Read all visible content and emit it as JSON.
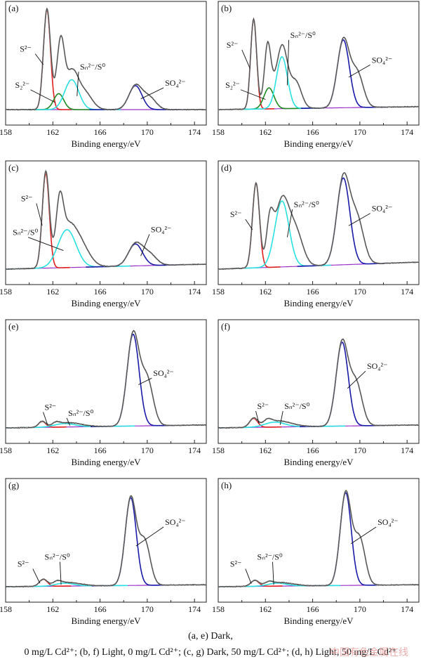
{
  "caption": {
    "line1": "(a, e) Dark,",
    "line2": "0 mg/L Cd²⁺; (b, f) Light, 0 mg/L Cd²⁺; (c, g) Dark, 50 mg/L Cd²⁺; (d, h) Light, 50 mg/L Cd²⁺",
    "watermark": "中国有色金属在线"
  },
  "colors": {
    "raw": "#1a1a1a",
    "envelope": "#8c8c8c",
    "s2": "#e02020",
    "s22": "#1f8a1f",
    "sn": "#29e0e0",
    "so4": "#1a1aa8",
    "background": "#9b30c8"
  },
  "chart_data": [
    {
      "panel": "(a)",
      "type": "line",
      "xlabel": "Binding energy/eV",
      "xlim": [
        158,
        175
      ],
      "xticks": [
        158,
        162,
        166,
        170,
        174
      ],
      "series": [
        {
          "name": "S²⁻",
          "key": "s2",
          "center": 161.5,
          "height": 1.0,
          "fwhm": 0.7
        },
        {
          "name": "S₂²⁻",
          "key": "s22",
          "center": 162.5,
          "height": 0.16,
          "fwhm": 1.0
        },
        {
          "name": "Sₙ²⁻/S⁰",
          "key": "sn",
          "center": 163.6,
          "height": 0.3,
          "fwhm": 1.4
        },
        {
          "name": "SO₄²⁻",
          "key": "so4",
          "center": 169.0,
          "height": 0.24,
          "fwhm": 1.3
        }
      ],
      "bg_start": 0.0,
      "bg_end": 0.0,
      "labels": [
        {
          "text": "S²⁻",
          "x": 159.2,
          "y": 0.58
        },
        {
          "text": "S₂²⁻",
          "x": 158.8,
          "y": 0.22
        },
        {
          "text": "Sₙ²⁻/S⁰",
          "x": 164.3,
          "y": 0.4
        },
        {
          "text": "SO₄²⁻",
          "x": 171.5,
          "y": 0.24
        }
      ]
    },
    {
      "panel": "(b)",
      "type": "line",
      "xlabel": "Binding energy/eV",
      "xlim": [
        158,
        175
      ],
      "xticks": [
        158,
        162,
        166,
        170,
        174
      ],
      "series": [
        {
          "name": "S²⁻",
          "key": "s2",
          "center": 161.0,
          "height": 0.9,
          "fwhm": 0.6
        },
        {
          "name": "S₂²⁻",
          "key": "s22",
          "center": 162.3,
          "height": 0.21,
          "fwhm": 1.0
        },
        {
          "name": "Sₙ²⁻/S⁰",
          "key": "sn",
          "center": 163.4,
          "height": 0.52,
          "fwhm": 1.1
        },
        {
          "name": "SO₄²⁻",
          "key": "so4",
          "center": 168.6,
          "height": 0.68,
          "fwhm": 1.2
        }
      ],
      "bg_start": 0.0,
      "bg_end": 0.03,
      "labels": [
        {
          "text": "S²⁻",
          "x": 158.7,
          "y": 0.62
        },
        {
          "text": "S₂²⁻",
          "x": 158.6,
          "y": 0.22
        },
        {
          "text": "Sₙ²⁻/S⁰",
          "x": 164.1,
          "y": 0.72
        },
        {
          "text": "SO₄²⁻",
          "x": 171.0,
          "y": 0.47
        }
      ]
    },
    {
      "panel": "(c)",
      "type": "line",
      "xlabel": "Binding energy/eV",
      "xlim": [
        158,
        175
      ],
      "xticks": [
        158,
        162,
        166,
        170,
        174
      ],
      "series": [
        {
          "name": "S²⁻",
          "key": "s2",
          "center": 161.4,
          "height": 0.95,
          "fwhm": 0.7
        },
        {
          "name": "Sₙ²⁻/S⁰",
          "key": "sn",
          "center": 163.2,
          "height": 0.38,
          "fwhm": 1.8
        },
        {
          "name": "SO₄²⁻",
          "key": "so4",
          "center": 169.0,
          "height": 0.22,
          "fwhm": 1.4
        }
      ],
      "bg_start": 0.0,
      "bg_end": 0.05,
      "labels": [
        {
          "text": "S²⁻",
          "x": 159.3,
          "y": 0.68
        },
        {
          "text": "Sₙ²⁻/S⁰",
          "x": 158.6,
          "y": 0.34
        },
        {
          "text": "SO₄²⁻",
          "x": 170.3,
          "y": 0.37
        }
      ]
    },
    {
      "panel": "(d)",
      "type": "line",
      "xlabel": "Binding energy/eV",
      "xlim": [
        158,
        175
      ],
      "xticks": [
        158,
        162,
        166,
        170,
        174
      ],
      "series": [
        {
          "name": "S²⁻",
          "key": "s2",
          "center": 161.2,
          "height": 0.85,
          "fwhm": 0.7
        },
        {
          "name": "Sₙ²⁻/S⁰",
          "key": "sn",
          "center": 163.4,
          "height": 0.66,
          "fwhm": 1.4
        },
        {
          "name": "SO₄²⁻",
          "key": "so4",
          "center": 168.6,
          "height": 0.87,
          "fwhm": 1.3
        }
      ],
      "bg_start": 0.0,
      "bg_end": 0.07,
      "labels": [
        {
          "text": "S²⁻",
          "x": 159.0,
          "y": 0.52
        },
        {
          "text": "Sₙ²⁻/S⁰",
          "x": 164.4,
          "y": 0.62
        },
        {
          "text": "SO₄²⁻",
          "x": 171.0,
          "y": 0.58
        }
      ]
    },
    {
      "panel": "(e)",
      "type": "line",
      "xlabel": "Binding energy/eV",
      "xlim": [
        158,
        175
      ],
      "xticks": [
        158,
        162,
        166,
        170,
        174
      ],
      "series": [
        {
          "name": "S²⁻",
          "key": "s2",
          "center": 161.1,
          "height": 0.06,
          "fwhm": 0.7
        },
        {
          "name": "Sₙ²⁻/S⁰",
          "key": "sn",
          "center": 163.0,
          "height": 0.035,
          "fwhm": 2.0
        },
        {
          "name": "SO₄²⁻",
          "key": "so4",
          "center": 168.8,
          "height": 0.92,
          "fwhm": 1.2
        }
      ],
      "bg_start": 0.0,
      "bg_end": 0.03,
      "labels": [
        {
          "text": "S²⁻",
          "x": 161.3,
          "y": 0.18
        },
        {
          "text": "Sₙ²⁻/S⁰",
          "x": 163.3,
          "y": 0.12
        },
        {
          "text": "SO₄²⁻",
          "x": 170.5,
          "y": 0.52
        }
      ]
    },
    {
      "panel": "(f)",
      "type": "line",
      "xlabel": "Binding energy/eV",
      "xlim": [
        158,
        175
      ],
      "xticks": [
        158,
        162,
        166,
        170,
        174
      ],
      "series": [
        {
          "name": "S²⁻",
          "key": "s2",
          "center": 161.0,
          "height": 0.09,
          "fwhm": 0.8
        },
        {
          "name": "Sₙ²⁻/S⁰",
          "key": "sn",
          "center": 162.8,
          "height": 0.05,
          "fwhm": 2.0
        },
        {
          "name": "SO₄²⁻",
          "key": "so4",
          "center": 168.5,
          "height": 0.84,
          "fwhm": 1.2
        }
      ],
      "bg_start": 0.0,
      "bg_end": 0.03,
      "labels": [
        {
          "text": "S²⁻",
          "x": 161.3,
          "y": 0.19
        },
        {
          "text": "Sₙ²⁻/S⁰",
          "x": 163.6,
          "y": 0.19
        },
        {
          "text": "SO₄²⁻",
          "x": 170.6,
          "y": 0.59
        }
      ]
    },
    {
      "panel": "(g)",
      "type": "line",
      "xlabel": "Binding energy/eV",
      "xlim": [
        158,
        175
      ],
      "xticks": [
        158,
        162,
        166,
        170,
        174
      ],
      "series": [
        {
          "name": "S²⁻",
          "key": "s2",
          "center": 161.2,
          "height": 0.07,
          "fwhm": 0.8
        },
        {
          "name": "Sₙ²⁻/S⁰",
          "key": "sn",
          "center": 163.0,
          "height": 0.03,
          "fwhm": 1.8
        },
        {
          "name": "SO₄²⁻",
          "key": "so4",
          "center": 168.6,
          "height": 0.88,
          "fwhm": 1.1
        }
      ],
      "bg_start": 0.0,
      "bg_end": 0.02,
      "labels": [
        {
          "text": "S²⁻",
          "x": 159.0,
          "y": 0.2
        },
        {
          "text": "Sₙ²⁻/S⁰",
          "x": 161.3,
          "y": 0.27
        },
        {
          "text": "SO₄²⁻",
          "x": 171.5,
          "y": 0.62
        }
      ]
    },
    {
      "panel": "(h)",
      "type": "line",
      "xlabel": "Binding energy/eV",
      "xlim": [
        158,
        175
      ],
      "xticks": [
        158,
        162,
        166,
        170,
        174
      ],
      "series": [
        {
          "name": "S²⁻",
          "key": "s2",
          "center": 161.1,
          "height": 0.06,
          "fwhm": 0.8
        },
        {
          "name": "Sₙ²⁻/S⁰",
          "key": "sn",
          "center": 163.0,
          "height": 0.03,
          "fwhm": 1.8
        },
        {
          "name": "SO₄²⁻",
          "key": "so4",
          "center": 168.8,
          "height": 0.93,
          "fwhm": 1.1
        }
      ],
      "bg_start": 0.0,
      "bg_end": 0.02,
      "labels": [
        {
          "text": "S²⁻",
          "x": 159.0,
          "y": 0.2
        },
        {
          "text": "Sₙ²⁻/S⁰",
          "x": 161.3,
          "y": 0.27
        },
        {
          "text": "SO₄²⁻",
          "x": 171.5,
          "y": 0.62
        }
      ]
    }
  ]
}
